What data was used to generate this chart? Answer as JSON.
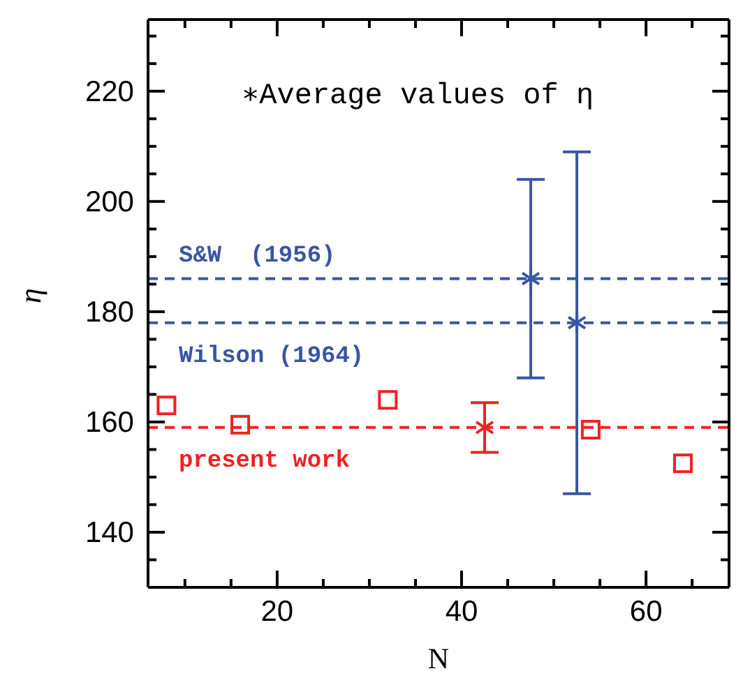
{
  "chart_data": {
    "type": "scatter",
    "xlabel": "N",
    "ylabel": "η",
    "annotations": [
      "∗Average values of η"
    ],
    "xlim": [
      6,
      69
    ],
    "xticks": [
      {
        "value": 10,
        "label": null
      },
      {
        "value": 15,
        "label": null
      },
      20,
      {
        "value": 25,
        "label": null
      },
      {
        "value": 30,
        "label": null
      },
      {
        "value": 35,
        "label": null
      },
      40,
      {
        "value": 45,
        "label": null
      },
      {
        "value": 50,
        "label": null
      },
      {
        "value": 55,
        "label": null
      },
      60,
      {
        "value": 65,
        "label": null
      }
    ],
    "ylim": [
      130,
      233
    ],
    "yticks": [
      {
        "value": 135,
        "label": null
      },
      140,
      {
        "value": 145,
        "label": null
      },
      {
        "value": 150,
        "label": null
      },
      {
        "value": 155,
        "label": null
      },
      160,
      {
        "value": 165,
        "label": null
      },
      {
        "value": 170,
        "label": null
      },
      {
        "value": 175,
        "label": null
      },
      180,
      {
        "value": 185,
        "label": null
      },
      {
        "value": 190,
        "label": null
      },
      {
        "value": 195,
        "label": null
      },
      200,
      {
        "value": 205,
        "label": null
      },
      {
        "value": 210,
        "label": null
      },
      {
        "value": 215,
        "label": null
      },
      220,
      {
        "value": 225,
        "label": null
      },
      {
        "value": 230,
        "label": null
      }
    ],
    "series": [
      {
        "color": "#ee2222",
        "marker": "square",
        "x": [
          8,
          16,
          32,
          54,
          64
        ],
        "values": [
          163,
          159.5,
          164,
          158.6,
          152.5
        ]
      },
      {
        "color": "#ee2222",
        "marker": "cross",
        "x": [
          42.5
        ],
        "values": [
          159
        ],
        "errors": [
          [
            154.5,
            163.5
          ]
        ]
      },
      {
        "color": "#3a55a5",
        "marker": "cross",
        "x": [
          47.5,
          52.5
        ],
        "values": [
          186,
          178
        ],
        "errors": [
          [
            168,
            204
          ],
          [
            147,
            209
          ]
        ]
      }
    ],
    "ref_lines": [
      {
        "axis": "y",
        "value": 186,
        "label": "S&W  (1956)",
        "color": "#3a55a5",
        "line_style": "dashed"
      },
      {
        "axis": "y",
        "value": 178,
        "label": "Wilson (1964)",
        "color": "#3a55a5",
        "line_style": "dashed"
      },
      {
        "axis": "y",
        "value": 159,
        "label": "present work",
        "color": "#ee2222",
        "line_style": "dashed"
      }
    ]
  }
}
